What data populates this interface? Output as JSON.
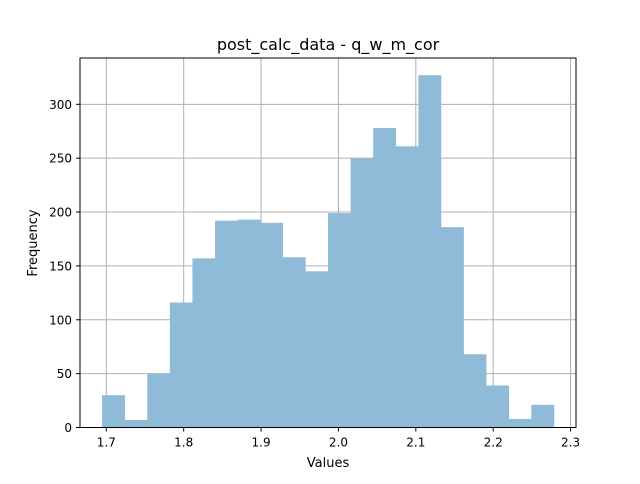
{
  "chart_data": {
    "type": "bar",
    "title": "post_calc_data - q_w_m_cor",
    "xlabel": "Values",
    "ylabel": "Frequency",
    "bin_edges": [
      1.6945,
      1.7237,
      1.7529,
      1.7821,
      1.8113,
      1.8405,
      1.8697,
      1.8989,
      1.9281,
      1.9573,
      1.9865,
      2.0157,
      2.0449,
      2.0741,
      2.1033,
      2.1325,
      2.1617,
      2.1909,
      2.2201,
      2.2493,
      2.2785
    ],
    "values": [
      30,
      7,
      50,
      116,
      157,
      192,
      193,
      190,
      158,
      145,
      199,
      250,
      278,
      261,
      327,
      186,
      68,
      39,
      8,
      21
    ],
    "xlim": [
      1.666,
      2.307
    ],
    "ylim": [
      0,
      343
    ],
    "x_ticks": [
      1.7,
      1.8,
      1.9,
      2.0,
      2.1,
      2.2,
      2.3
    ],
    "x_tick_labels": [
      "1.7",
      "1.8",
      "1.9",
      "2.0",
      "2.1",
      "2.2",
      "2.3"
    ],
    "y_ticks": [
      0,
      50,
      100,
      150,
      200,
      250,
      300
    ],
    "y_tick_labels": [
      "0",
      "50",
      "100",
      "150",
      "200",
      "250",
      "300"
    ],
    "grid": true,
    "bar_color": "#8fbbd9",
    "grid_color": "#b0b0b0",
    "axis_color": "#000000"
  }
}
